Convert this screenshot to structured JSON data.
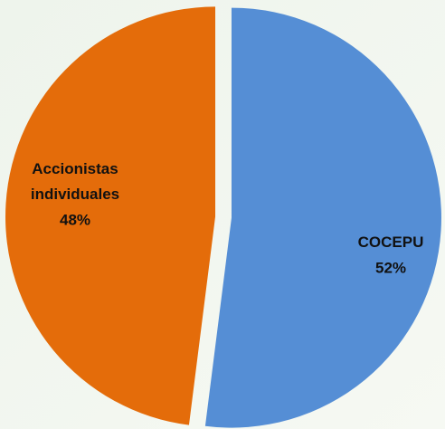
{
  "chart_data": {
    "type": "pie",
    "categories": [
      "COCEPU",
      "Accionistas individuales"
    ],
    "values": [
      52,
      48
    ],
    "value_labels": [
      "52%",
      "48%"
    ],
    "colors": [
      "#558ed5",
      "#e46c0a"
    ]
  }
}
